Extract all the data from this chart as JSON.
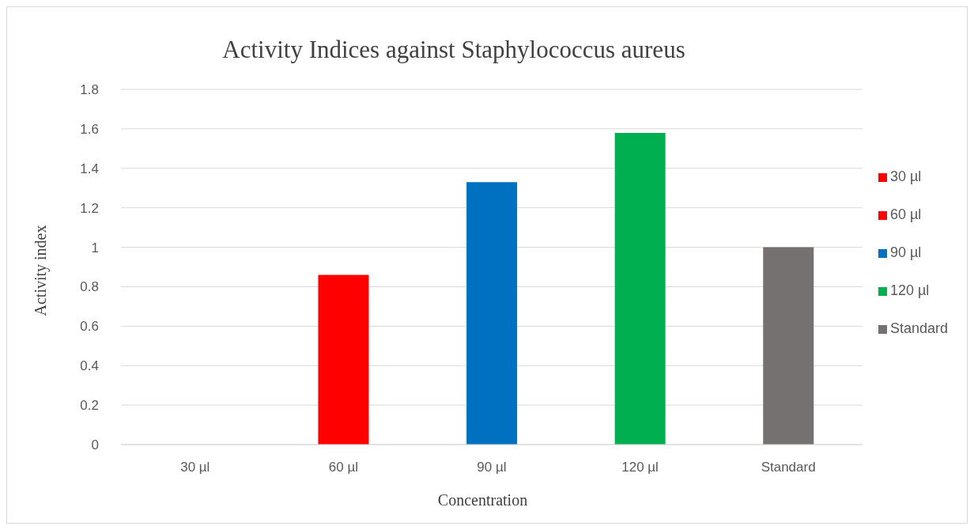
{
  "chart_data": {
    "type": "bar",
    "title": "Activity Indices against Staphylococcus aureus",
    "xlabel": "Concentration",
    "ylabel": "Activity index",
    "categories": [
      "30 µl",
      "60 µl",
      "90 µl",
      "120 µl",
      "Standard"
    ],
    "series": [
      {
        "name": "30 µl",
        "color": "#ff0000",
        "values": [
          0,
          null,
          null,
          null,
          null
        ]
      },
      {
        "name": "60 µl",
        "color": "#ff0000",
        "values": [
          null,
          0.86,
          null,
          null,
          null
        ]
      },
      {
        "name": "90 µl",
        "color": "#0070c0",
        "values": [
          null,
          null,
          1.33,
          null,
          null
        ]
      },
      {
        "name": "120 µl",
        "color": "#00b050",
        "values": [
          null,
          null,
          null,
          1.58,
          null
        ]
      },
      {
        "name": "Standard",
        "color": "#767171",
        "values": [
          null,
          null,
          null,
          null,
          1.0
        ]
      }
    ],
    "stacked": true,
    "ylim": [
      0,
      1.8
    ],
    "yticks": [
      0,
      0.2,
      0.4,
      0.6,
      0.8,
      1,
      1.2,
      1.4,
      1.6,
      1.8
    ],
    "grid": "y",
    "legend": "right"
  }
}
